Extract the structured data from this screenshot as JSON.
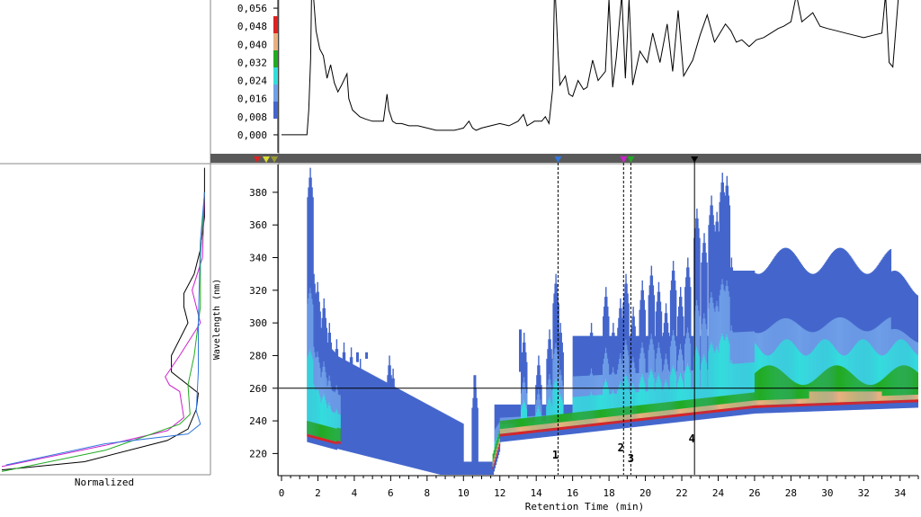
{
  "chart_data": [
    {
      "panel": "chromatogram",
      "type": "line",
      "xlim": [
        0,
        35
      ],
      "ylim": [
        -0.004,
        0.062
      ],
      "ytick_labels": [
        "0,000",
        "0,008",
        "0,016",
        "0,024",
        "0,032",
        "0,040",
        "0,048",
        "0,056"
      ],
      "ytick_values": [
        0,
        0.008,
        0.016,
        0.024,
        0.032,
        0.04,
        0.048,
        0.056
      ],
      "color_scale": [
        "#4466cc",
        "#6f9fe8",
        "#33dddd",
        "#22aa22",
        "#e8b080",
        "#dd2222"
      ],
      "x": [
        0,
        1.4,
        1.5,
        1.6,
        1.65,
        1.75,
        1.9,
        2.1,
        2.3,
        2.5,
        2.7,
        2.9,
        3.1,
        3.3,
        3.6,
        3.7,
        3.9,
        4.3,
        4.6,
        5,
        5.6,
        5.8,
        5.9,
        6.1,
        6.3,
        6.6,
        7,
        7.5,
        8,
        8.5,
        9,
        9.5,
        10,
        10.3,
        10.5,
        10.7,
        11,
        11.5,
        12,
        12.5,
        13,
        13.3,
        13.5,
        13.9,
        14.3,
        14.5,
        14.7,
        14.9,
        15,
        15.05,
        15.2,
        15.3,
        15.6,
        15.8,
        16,
        16.3,
        16.6,
        16.8,
        17.1,
        17.4,
        17.8,
        18,
        18.2,
        18.4,
        18.7,
        18.9,
        19.1,
        19.3,
        19.7,
        20.1,
        20.4,
        20.8,
        21.2,
        21.5,
        21.8,
        22.1,
        22.6,
        23,
        23.4,
        23.8,
        24.1,
        24.4,
        24.7,
        25,
        25.3,
        25.7,
        26.1,
        26.5,
        26.9,
        27.3,
        27.6,
        28,
        28.3,
        28.6,
        28.9,
        29.2,
        29.6,
        30,
        30.5,
        31,
        31.5,
        32,
        32.5,
        33,
        33.2,
        33.4,
        33.6,
        33.9
      ],
      "y": [
        0,
        0,
        0.011,
        0.034,
        0.062,
        0.062,
        0.046,
        0.038,
        0.035,
        0.025,
        0.031,
        0.023,
        0.019,
        0.022,
        0.027,
        0.016,
        0.011,
        0.008,
        0.007,
        0.006,
        0.006,
        0.018,
        0.011,
        0.006,
        0.005,
        0.005,
        0.004,
        0.004,
        0.003,
        0.002,
        0.002,
        0.002,
        0.003,
        0.006,
        0.003,
        0.002,
        0.003,
        0.004,
        0.005,
        0.004,
        0.006,
        0.009,
        0.004,
        0.006,
        0.006,
        0.008,
        0.005,
        0.02,
        0.062,
        0.062,
        0.036,
        0.022,
        0.026,
        0.018,
        0.017,
        0.024,
        0.02,
        0.021,
        0.033,
        0.024,
        0.028,
        0.06,
        0.021,
        0.034,
        0.062,
        0.025,
        0.06,
        0.022,
        0.037,
        0.032,
        0.045,
        0.032,
        0.049,
        0.028,
        0.055,
        0.026,
        0.033,
        0.044,
        0.053,
        0.041,
        0.045,
        0.049,
        0.046,
        0.041,
        0.042,
        0.039,
        0.042,
        0.043,
        0.045,
        0.047,
        0.048,
        0.05,
        0.062,
        0.05,
        0.052,
        0.054,
        0.048,
        0.047,
        0.046,
        0.045,
        0.044,
        0.043,
        0.044,
        0.045,
        0.062,
        0.032,
        0.03,
        0.06
      ]
    },
    {
      "panel": "isoabsorbance-contour",
      "type": "heatmap",
      "xlabel": "Retention Time (min)",
      "ylabel": "Wavelength (nm)",
      "xlim": [
        0,
        35
      ],
      "ylim": [
        207,
        397
      ],
      "xtick_values": [
        0,
        2,
        4,
        6,
        8,
        10,
        12,
        14,
        16,
        18,
        20,
        22,
        24,
        26,
        28,
        30,
        32,
        34
      ],
      "ytick_values": [
        220,
        240,
        260,
        280,
        300,
        320,
        340,
        360,
        380
      ],
      "crosshair_wavelength": 260,
      "markers": [
        {
          "label": "1",
          "time": 15.2,
          "style": "dashed",
          "color": "#3377dd"
        },
        {
          "label": "2",
          "time": 18.8,
          "style": "dashed",
          "color": "#cc22cc"
        },
        {
          "label": "3",
          "time": 19.2,
          "style": "dashed",
          "color": "#22aa22"
        },
        {
          "label": "4",
          "time": 22.7,
          "style": "solid",
          "color": "#000000"
        }
      ],
      "color_levels": [
        "#4466cc",
        "#6f9fe8",
        "#33dddd",
        "#22aa22",
        "#e8b080",
        "#dd2222"
      ]
    },
    {
      "panel": "spectra",
      "type": "line",
      "xlabel": "Normalized",
      "ylim": [
        207,
        397
      ],
      "series": [
        {
          "color": "#000000",
          "points": [
            [
              0,
              210
            ],
            [
              0.4,
              215
            ],
            [
              0.8,
              228
            ],
            [
              0.9,
              235
            ],
            [
              0.94,
              247
            ],
            [
              0.95,
              257
            ],
            [
              0.9,
              262
            ],
            [
              0.82,
              270
            ],
            [
              0.82,
              280
            ],
            [
              0.9,
              300
            ],
            [
              0.88,
              310
            ],
            [
              0.88,
              318
            ],
            [
              0.93,
              330
            ],
            [
              0.96,
              345
            ],
            [
              0.98,
              365
            ],
            [
              0.98,
              395
            ]
          ]
        },
        {
          "color": "#cc22cc",
          "points": [
            [
              0,
              212
            ],
            [
              0.5,
              225
            ],
            [
              0.8,
              234
            ],
            [
              0.88,
              242
            ],
            [
              0.86,
              258
            ],
            [
              0.81,
              262
            ],
            [
              0.79,
              267
            ],
            [
              0.86,
              280
            ],
            [
              0.96,
              300
            ],
            [
              0.92,
              320
            ],
            [
              0.97,
              340
            ],
            [
              0.98,
              380
            ]
          ]
        },
        {
          "color": "#22aa22",
          "points": [
            [
              0,
              209
            ],
            [
              0.5,
              222
            ],
            [
              0.86,
              238
            ],
            [
              0.91,
              244
            ],
            [
              0.9,
              262
            ],
            [
              0.93,
              280
            ],
            [
              0.96,
              310
            ],
            [
              0.96,
              340
            ],
            [
              0.98,
              380
            ]
          ]
        },
        {
          "color": "#3377dd",
          "points": [
            [
              0.02,
              213
            ],
            [
              0.5,
              226
            ],
            [
              0.9,
              232
            ],
            [
              0.96,
              238
            ],
            [
              0.94,
              246
            ],
            [
              0.95,
              270
            ],
            [
              0.95,
              300
            ],
            [
              0.96,
              350
            ],
            [
              0.98,
              380
            ]
          ]
        }
      ]
    }
  ]
}
